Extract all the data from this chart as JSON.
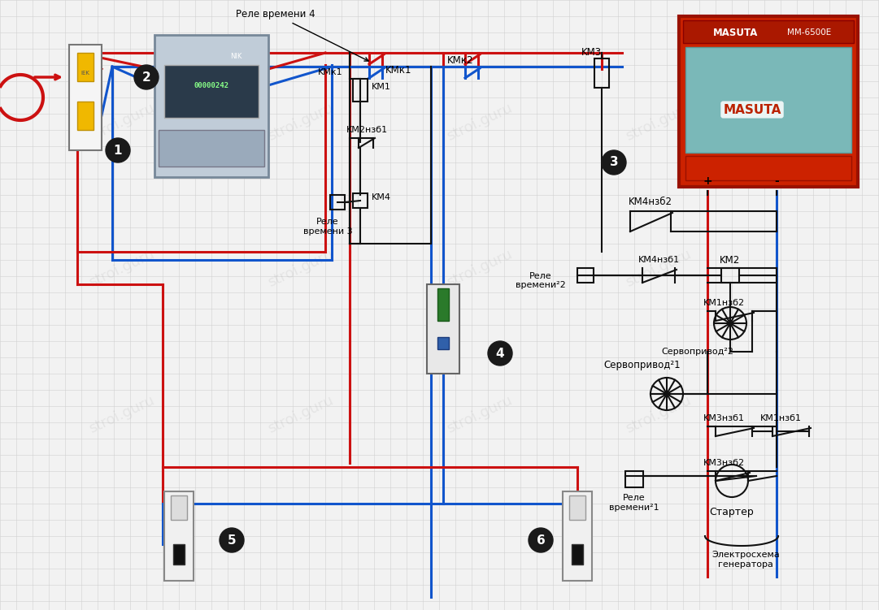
{
  "bg_color": "#f2f2f2",
  "grid_color": "#d0d0d0",
  "red_wire": "#cc1111",
  "blue_wire": "#1155cc",
  "black_wire": "#111111",
  "labels": {
    "rele4": "Реле времени 4",
    "km1": "KM1",
    "kmk1": "KMк1",
    "kmk2": "KMк2",
    "km3": "KM3",
    "km2nz1": "KM2нзб1",
    "km4": "KM4",
    "rele3_line1": "Реле",
    "rele3_line2": "времени 3",
    "km4nz2": "KM4нзб2",
    "rele2_line1": "Реле",
    "rele2_line2": "времени²2",
    "km4nz1": "KM4нзб1",
    "km2": "KM2",
    "km1nz2": "KM1нзб2",
    "servoprivod2": "Сервопривод²2",
    "servoprivod1": "Сервопривод²1",
    "km3nz1": "KM3нзб1",
    "km1nz1": "KM1нзб1",
    "km3nz2": "KM3нзб2",
    "rele1_line1": "Реле",
    "rele1_line2": "времени²1",
    "starter": "Стартер",
    "elektroschema_line1": "Электросхема",
    "elektroschema_line2": "генератора",
    "label1": "1",
    "label2": "2",
    "label3": "3",
    "label4": "4",
    "label5": "5",
    "label6": "6",
    "plus": "+",
    "minus": "-"
  },
  "figsize": [
    10.81,
    7.51
  ]
}
